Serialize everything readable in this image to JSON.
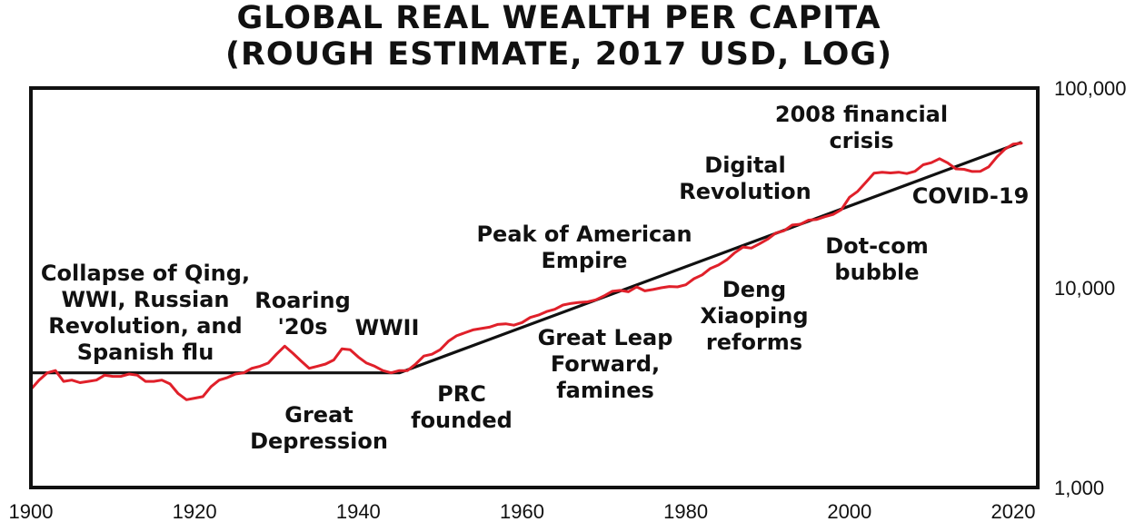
{
  "chart_data": {
    "type": "line",
    "title": "GLOBAL REAL WEALTH PER CAPITA",
    "subtitle": "(ROUGH ESTIMATE, 2017 USD, LOG)",
    "y_scale": "log",
    "xlim": [
      1900,
      2023
    ],
    "ylim": [
      1000,
      100000
    ],
    "x_ticks": [
      1900,
      1920,
      1940,
      1960,
      1980,
      2000,
      2020
    ],
    "x_tick_labels": [
      "1900",
      "1920",
      "1940",
      "1960",
      "1980",
      "2000",
      "2020"
    ],
    "y_ticks": [
      1000,
      10000,
      100000
    ],
    "y_tick_labels": [
      "1,000",
      "10,000",
      "100,000"
    ],
    "grid": false,
    "colors": {
      "wealth_line": "#e0202a",
      "trend_line": "#111111",
      "frame": "#111111"
    },
    "series": [
      {
        "x": [
          1900,
          1901,
          1902,
          1903,
          1904,
          1905,
          1906,
          1907,
          1908,
          1909,
          1910,
          1911,
          1912,
          1913,
          1914,
          1915,
          1916,
          1917,
          1918,
          1919,
          1920,
          1921,
          1922,
          1923,
          1924,
          1925,
          1926,
          1927,
          1928,
          1929,
          1930,
          1931,
          1932,
          1933,
          1934,
          1935,
          1936,
          1937,
          1938,
          1939,
          1940,
          1941,
          1942,
          1943,
          1944,
          1945,
          1946,
          1947,
          1948,
          1949,
          1950,
          1951,
          1952,
          1953,
          1954,
          1955,
          1956,
          1957,
          1958,
          1959,
          1960,
          1961,
          1962,
          1963,
          1964,
          1965,
          1966,
          1967,
          1968,
          1969,
          1970,
          1971,
          1972,
          1973,
          1974,
          1975,
          1976,
          1977,
          1978,
          1979,
          1980,
          1981,
          1982,
          1983,
          1984,
          1985,
          1986,
          1987,
          1988,
          1989,
          1990,
          1991,
          1992,
          1993,
          1994,
          1995,
          1996,
          1997,
          1998,
          1999,
          2000,
          2001,
          2002,
          2003,
          2004,
          2005,
          2006,
          2007,
          2008,
          2009,
          2010,
          2011,
          2012,
          2013,
          2014,
          2015,
          2016,
          2017,
          2018,
          2019,
          2020,
          2021
        ],
        "values": [
          3100,
          3450,
          3750,
          3850,
          3400,
          3450,
          3350,
          3400,
          3450,
          3650,
          3600,
          3600,
          3700,
          3650,
          3400,
          3400,
          3450,
          3300,
          2950,
          2750,
          2800,
          2850,
          3200,
          3450,
          3550,
          3700,
          3750,
          3950,
          4050,
          4200,
          4650,
          5100,
          4700,
          4300,
          3950,
          4050,
          4150,
          4350,
          4950,
          4900,
          4500,
          4200,
          4050,
          3850,
          3750,
          3850,
          3850,
          4150,
          4550,
          4650,
          4900,
          5400,
          5750,
          5950,
          6150,
          6250,
          6350,
          6550,
          6600,
          6500,
          6700,
          7100,
          7300,
          7600,
          7800,
          8200,
          8350,
          8450,
          8500,
          8700,
          9100,
          9600,
          9700,
          9550,
          10100,
          9650,
          9800,
          10000,
          10150,
          10100,
          10350,
          11100,
          11600,
          12500,
          13000,
          13800,
          15000,
          16000,
          15800,
          16600,
          17500,
          18800,
          19300,
          20600,
          20800,
          21800,
          22000,
          22700,
          23300,
          24600,
          28400,
          30400,
          33700,
          37500,
          37900,
          37600,
          37900,
          37300,
          38300,
          41300,
          42300,
          44300,
          42200,
          39400,
          39200,
          38200,
          38300,
          40300,
          45200,
          49500,
          52400,
          53000
        ]
      }
    ],
    "trend_line": {
      "x": [
        1900,
        1945,
        2021
      ],
      "values": [
        3750,
        3750,
        53500
      ]
    },
    "annotations": [
      {
        "lines": [
          "Collapse of Qing,",
          "WWI, Russian",
          "Revolution, and",
          "Spanish flu"
        ]
      },
      {
        "lines": [
          "Roaring",
          "'20s"
        ]
      },
      {
        "lines": [
          "WWII"
        ]
      },
      {
        "lines": [
          "Great",
          "Depression"
        ]
      },
      {
        "lines": [
          "PRC",
          "founded"
        ]
      },
      {
        "lines": [
          "Peak of American",
          "Empire"
        ]
      },
      {
        "lines": [
          "Great Leap",
          "Forward,",
          "famines"
        ]
      },
      {
        "lines": [
          "Digital",
          "Revolution"
        ]
      },
      {
        "lines": [
          "Deng",
          "Xiaoping",
          "reforms"
        ]
      },
      {
        "lines": [
          "2008 financial",
          "crisis"
        ]
      },
      {
        "lines": [
          "COVID-19"
        ]
      },
      {
        "lines": [
          "Dot-com",
          "bubble"
        ]
      }
    ]
  }
}
